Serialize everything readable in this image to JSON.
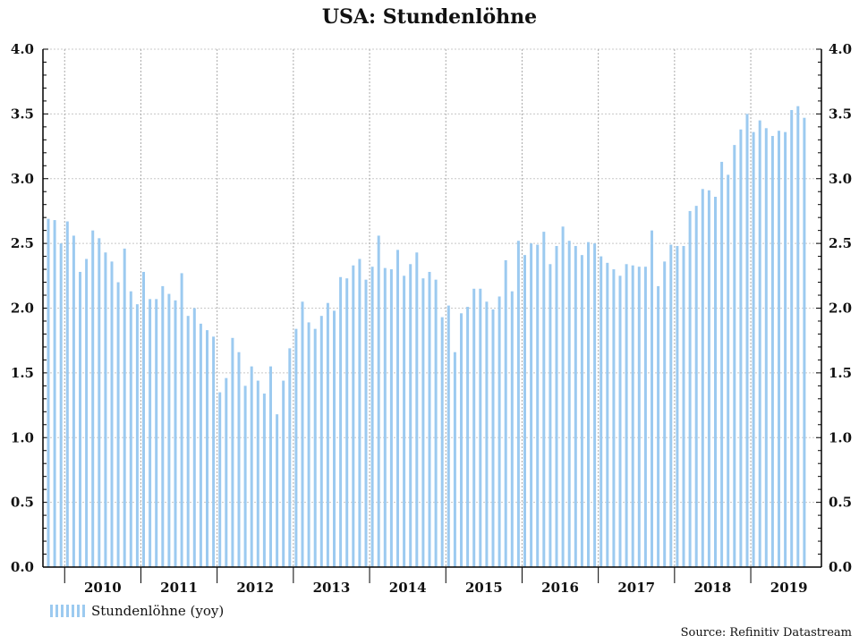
{
  "chart_data": {
    "type": "bar",
    "title": "USA: Stundenlöhne",
    "xlabel": "",
    "ylabel": "",
    "ylim": [
      0,
      4.0
    ],
    "yticks": [
      "0.0",
      "0.5",
      "1.0",
      "1.5",
      "2.0",
      "2.5",
      "3.0",
      "3.5",
      "4.0"
    ],
    "year_labels": [
      "2010",
      "2011",
      "2012",
      "2013",
      "2014",
      "2015",
      "2016",
      "2017",
      "2018",
      "2019"
    ],
    "grid": true,
    "legend_placement": "bottom-left",
    "bar_color": "#9ccaf0",
    "series": [
      {
        "name": "Stundenlöhne (yoy)",
        "x": [
          "2009-10",
          "2009-11",
          "2009-12",
          "2010-01",
          "2010-02",
          "2010-03",
          "2010-04",
          "2010-05",
          "2010-06",
          "2010-07",
          "2010-08",
          "2010-09",
          "2010-10",
          "2010-11",
          "2010-12",
          "2011-01",
          "2011-02",
          "2011-03",
          "2011-04",
          "2011-05",
          "2011-06",
          "2011-07",
          "2011-08",
          "2011-09",
          "2011-10",
          "2011-11",
          "2011-12",
          "2012-01",
          "2012-02",
          "2012-03",
          "2012-04",
          "2012-05",
          "2012-06",
          "2012-07",
          "2012-08",
          "2012-09",
          "2012-10",
          "2012-11",
          "2012-12",
          "2013-01",
          "2013-02",
          "2013-03",
          "2013-04",
          "2013-05",
          "2013-06",
          "2013-07",
          "2013-08",
          "2013-09",
          "2013-10",
          "2013-11",
          "2013-12",
          "2014-01",
          "2014-02",
          "2014-03",
          "2014-04",
          "2014-05",
          "2014-06",
          "2014-07",
          "2014-08",
          "2014-09",
          "2014-10",
          "2014-11",
          "2014-12",
          "2015-01",
          "2015-02",
          "2015-03",
          "2015-04",
          "2015-05",
          "2015-06",
          "2015-07",
          "2015-08",
          "2015-09",
          "2015-10",
          "2015-11",
          "2015-12",
          "2016-01",
          "2016-02",
          "2016-03",
          "2016-04",
          "2016-05",
          "2016-06",
          "2016-07",
          "2016-08",
          "2016-09",
          "2016-10",
          "2016-11",
          "2016-12",
          "2017-01",
          "2017-02",
          "2017-03",
          "2017-04",
          "2017-05",
          "2017-06",
          "2017-07",
          "2017-08",
          "2017-09",
          "2017-10",
          "2017-11",
          "2017-12",
          "2018-01",
          "2018-02",
          "2018-03",
          "2018-04",
          "2018-05",
          "2018-06",
          "2018-07",
          "2018-08",
          "2018-09",
          "2018-10",
          "2018-11",
          "2018-12",
          "2019-01",
          "2019-02",
          "2019-03",
          "2019-04",
          "2019-05",
          "2019-06",
          "2019-07",
          "2019-08",
          "2019-09"
        ],
        "values": [
          2.69,
          2.68,
          2.5,
          2.67,
          2.56,
          2.28,
          2.38,
          2.6,
          2.54,
          2.43,
          2.36,
          2.2,
          2.46,
          2.13,
          2.03,
          2.28,
          2.07,
          2.07,
          2.17,
          2.11,
          2.06,
          2.27,
          1.94,
          2.0,
          1.88,
          1.83,
          1.78,
          1.35,
          1.46,
          1.77,
          1.66,
          1.4,
          1.55,
          1.44,
          1.34,
          1.55,
          1.18,
          1.44,
          1.69,
          1.84,
          2.05,
          1.89,
          1.84,
          1.94,
          2.04,
          1.98,
          2.24,
          2.23,
          2.33,
          2.38,
          2.22,
          2.32,
          2.56,
          2.31,
          2.3,
          2.45,
          2.25,
          2.34,
          2.43,
          2.23,
          2.28,
          2.22,
          1.93,
          2.02,
          1.66,
          1.96,
          2.01,
          2.15,
          2.15,
          2.05,
          1.99,
          2.09,
          2.37,
          2.13,
          2.52,
          2.41,
          2.5,
          2.49,
          2.59,
          2.34,
          2.48,
          2.63,
          2.52,
          2.48,
          2.41,
          2.51,
          2.5,
          2.4,
          2.35,
          2.3,
          2.25,
          2.34,
          2.33,
          2.32,
          2.32,
          2.6,
          2.17,
          2.36,
          2.49,
          2.48,
          2.48,
          2.75,
          2.79,
          2.92,
          2.91,
          2.86,
          3.13,
          3.03,
          3.26,
          3.38,
          3.5,
          3.36,
          3.45,
          3.39,
          3.33,
          3.37,
          3.36,
          3.53,
          3.56,
          3.47
        ]
      }
    ],
    "source": "Source: Refinitiv Datastream"
  }
}
